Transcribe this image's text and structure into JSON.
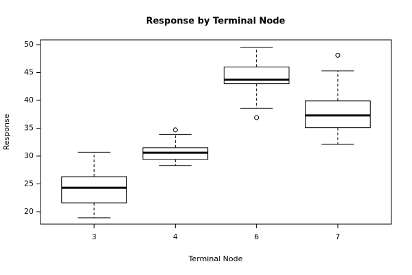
{
  "chart_data": {
    "type": "box",
    "title": "Response by Terminal Node",
    "x_label": "Terminal Node",
    "y_label": "Response",
    "categories": [
      "3",
      "4",
      "6",
      "7"
    ],
    "boxes": [
      {
        "whisker_low": 18.9,
        "q1": 21.6,
        "median": 24.3,
        "q3": 26.3,
        "whisker_high": 30.7,
        "outliers": []
      },
      {
        "whisker_low": 28.3,
        "q1": 29.4,
        "median": 30.6,
        "q3": 31.5,
        "whisker_high": 33.9,
        "outliers": [
          34.7
        ]
      },
      {
        "whisker_low": 38.6,
        "q1": 43.0,
        "median": 43.7,
        "q3": 46.0,
        "whisker_high": 49.5,
        "outliers": [
          36.9
        ]
      },
      {
        "whisker_low": 32.1,
        "q1": 35.1,
        "median": 37.3,
        "q3": 39.9,
        "whisker_high": 45.3,
        "outliers": [
          48.1
        ]
      }
    ],
    "color": "#000000",
    "ylim": [
      17.78,
      50.86
    ],
    "yticks": [
      20,
      25,
      30,
      35,
      40,
      45,
      50
    ],
    "grid": false
  }
}
